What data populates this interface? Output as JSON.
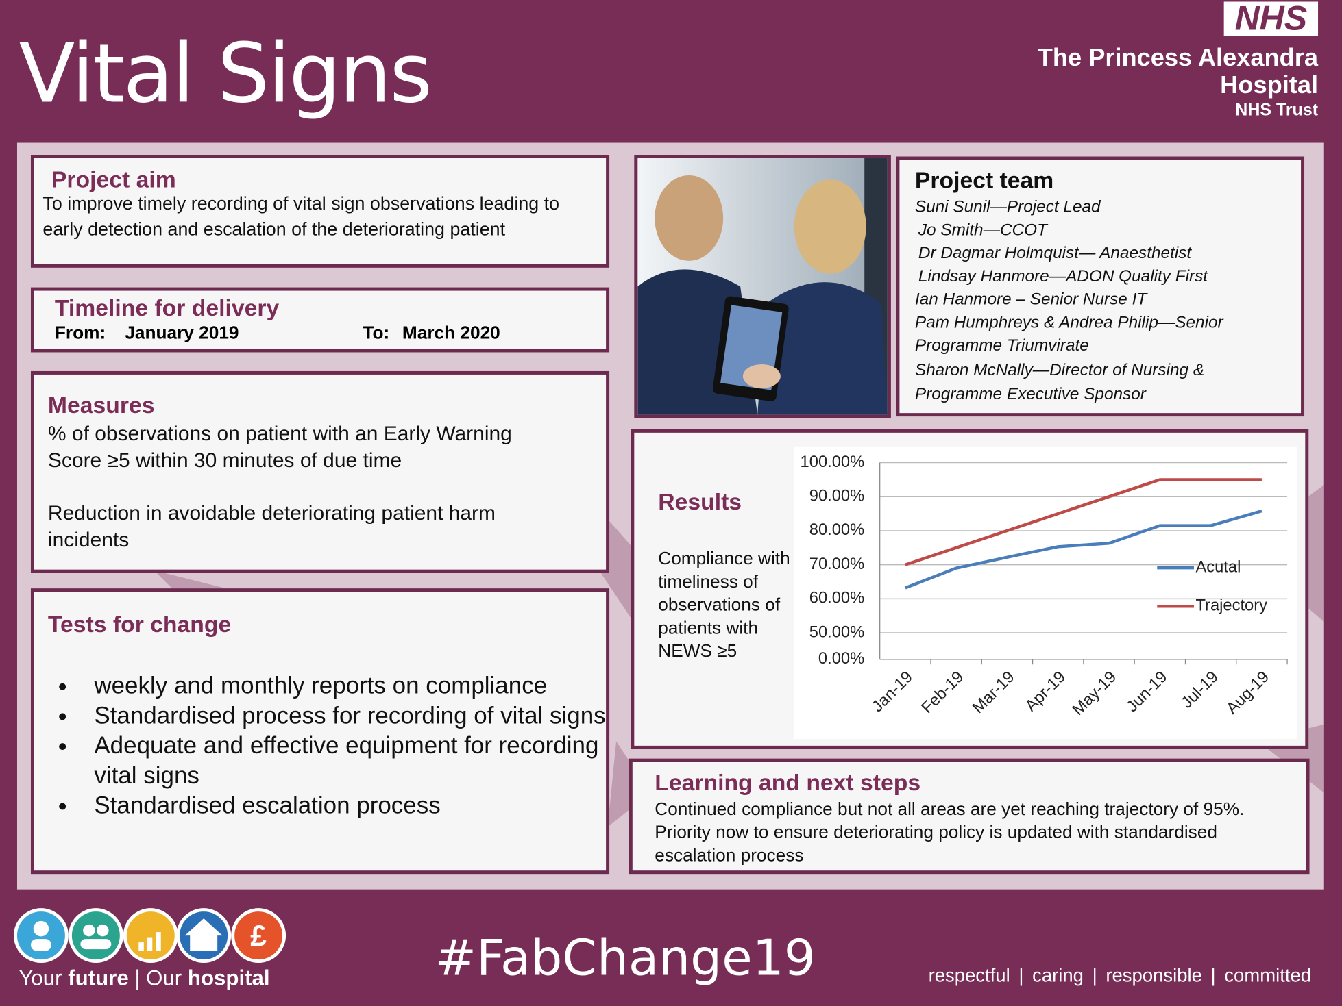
{
  "header": {
    "title": "Vital Signs",
    "logo": "NHS",
    "trust_name_1": "The Princess Alexandra",
    "trust_name_2": "Hospital",
    "trust_sub": "NHS Trust"
  },
  "project_aim": {
    "heading": "Project aim",
    "text": "To improve timely recording of vital sign observations leading to early detection and escalation of the deteriorating patient"
  },
  "timeline": {
    "heading": "Timeline for delivery",
    "from_label": "From:",
    "from": "January 2019",
    "to_label": "To:",
    "to": "March 2020"
  },
  "measures": {
    "heading": "Measures",
    "items": [
      "% of observations on patient with an Early Warning Score  ≥5 within 30 minutes of due time",
      "Reduction in avoidable deteriorating patient harm incidents"
    ]
  },
  "tests": {
    "heading": "Tests for change",
    "items": [
      "weekly and monthly reports on compliance",
      "Standardised process for recording of vital signs",
      "Adequate and effective equipment for recording vital signs",
      "Standardised escalation process"
    ]
  },
  "team": {
    "heading": "Project team",
    "members": [
      "Suni Sunil—Project Lead",
      "Jo Smith—CCOT",
      "Dr Dagmar Holmquist— Anaesthetist",
      "Lindsay Hanmore—ADON Quality First",
      "Ian Hanmore – Senior Nurse IT",
      "Pam Humphreys & Andrea Philip—Senior",
      "Programme Triumvirate",
      "Sharon McNally—Director of Nursing &",
      "Programme Executive Sponsor"
    ]
  },
  "results": {
    "heading": "Results",
    "description": "Compliance with timeliness of observations of patients with NEWS ≥5"
  },
  "chart_data": {
    "type": "line",
    "categories": [
      "Jan-19",
      "Feb-19",
      "Mar-19",
      "Apr-19",
      "May-19",
      "Jun-19",
      "Jul-19",
      "Aug-19"
    ],
    "series": [
      {
        "name": "Acutal",
        "color": "#4a7ebb",
        "values": [
          63.2,
          69,
          72.2,
          75.3,
          76.3,
          81.5,
          81.5,
          85.8
        ]
      },
      {
        "name": "Trajectory",
        "color": "#be4b48",
        "values": [
          70,
          75,
          80,
          85,
          90,
          95,
          95,
          95
        ]
      }
    ],
    "ylim": [
      0,
      100
    ],
    "yticks": [
      {
        "value": 0,
        "label": "0.00%"
      },
      {
        "value": 50,
        "label": "50.00%"
      },
      {
        "value": 60,
        "label": "60.00%"
      },
      {
        "value": 70,
        "label": "70.00%"
      },
      {
        "value": 80,
        "label": "80.00%"
      },
      {
        "value": 90,
        "label": "90.00%"
      },
      {
        "value": 100,
        "label": "100.00%"
      }
    ],
    "grid": true
  },
  "learning": {
    "heading": "Learning and next steps",
    "text": "Continued compliance but not all areas are yet reaching trajectory of 95%. Priority now to ensure deteriorating policy is updated with standardised escalation process"
  },
  "footer": {
    "tagline_your": "Your",
    "tagline_future": "future",
    "tagline_sep": "|",
    "tagline_our": "Our",
    "tagline_hospital": "hospital",
    "hashtag": "#FabChange19",
    "values": [
      "respectful",
      "caring",
      "responsible",
      "committed"
    ],
    "separator": "|"
  }
}
